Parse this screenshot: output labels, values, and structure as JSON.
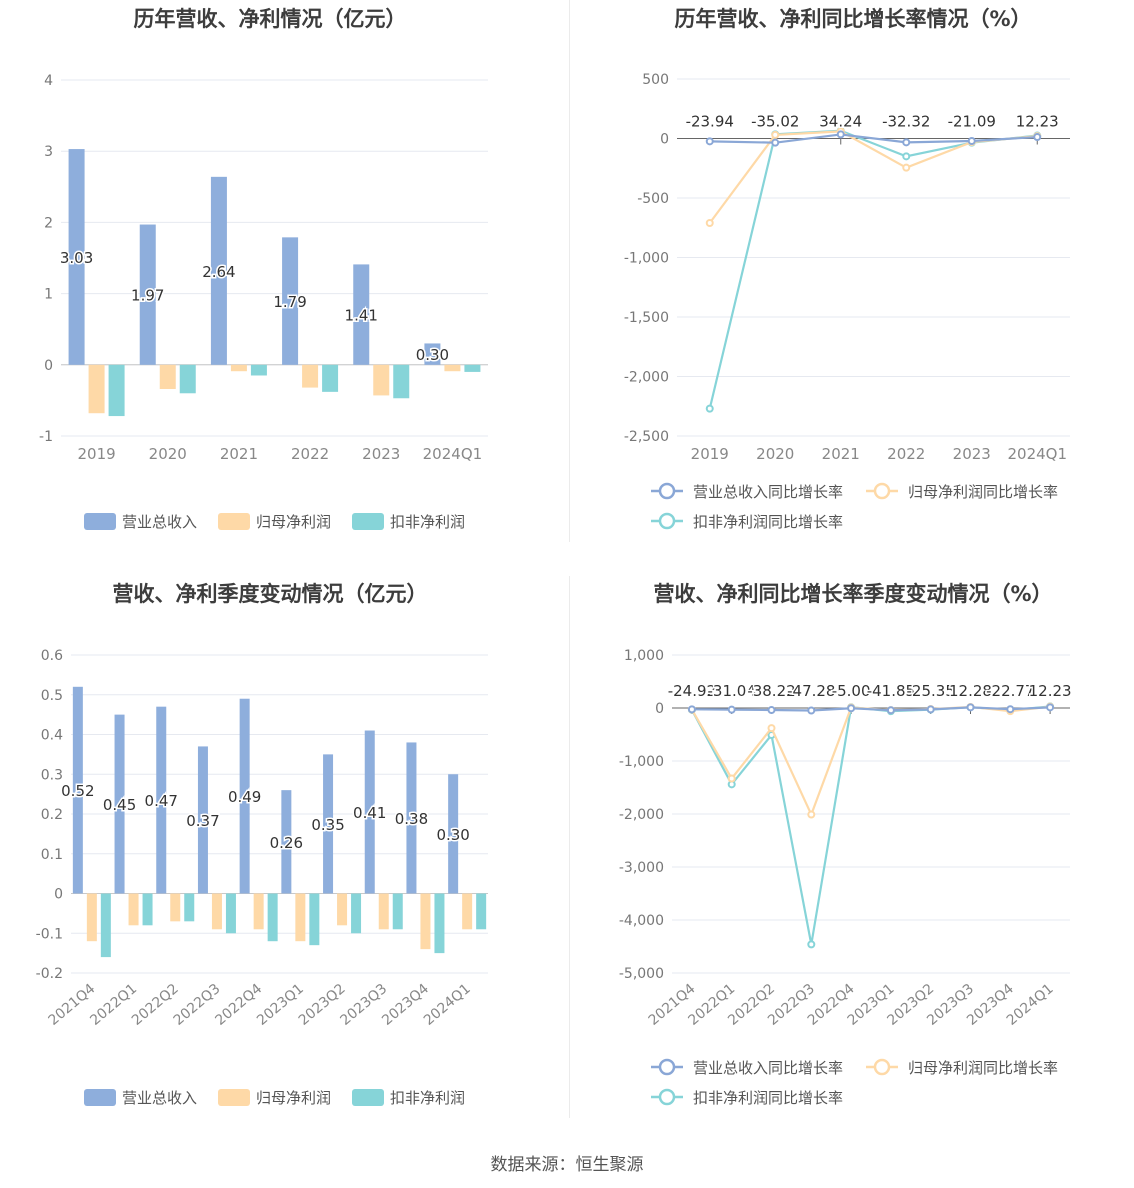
{
  "chart_data": [
    {
      "type": "bar",
      "title": "历年营收、净利情况（亿元）",
      "categories": [
        "2019",
        "2020",
        "2021",
        "2022",
        "2023",
        "2024Q1"
      ],
      "ylim": [
        -1,
        4
      ],
      "yticks": [
        -1,
        0,
        1,
        2,
        3,
        4
      ],
      "grid": true,
      "legend": "bottom",
      "series": [
        {
          "name": "营业总收入",
          "color": "#8eaedc",
          "values": [
            3.03,
            1.97,
            2.64,
            1.79,
            1.41,
            0.3
          ],
          "labels": [
            "3.03",
            "1.97",
            "2.64",
            "1.79",
            "1.41",
            "0.30"
          ]
        },
        {
          "name": "归母净利润",
          "color": "#fed9a7",
          "values": [
            -0.68,
            -0.34,
            -0.09,
            -0.32,
            -0.43,
            -0.09
          ]
        },
        {
          "name": "扣非净利润",
          "color": "#86d4d8",
          "values": [
            -0.72,
            -0.4,
            -0.15,
            -0.38,
            -0.47,
            -0.1
          ]
        }
      ]
    },
    {
      "type": "line",
      "title": "历年营收、净利同比增长率情况（%）",
      "categories": [
        "2019",
        "2020",
        "2021",
        "2022",
        "2023",
        "2024Q1"
      ],
      "ylim": [
        -2500,
        500
      ],
      "yticks": [
        -2500,
        -2000,
        -1500,
        -1000,
        -500,
        0,
        500
      ],
      "ytick_labels": [
        "-2,500",
        "-2,000",
        "-1,500",
        "-1,000",
        "-500",
        "0",
        "500"
      ],
      "grid": true,
      "legend": "bottom",
      "series": [
        {
          "name": "营业总收入同比增长率",
          "color": "#8aa7d6",
          "values": [
            -23.94,
            -35.02,
            34.24,
            -32.32,
            -21.09,
            12.23
          ],
          "labels": [
            "-23.94",
            "-35.02",
            "34.24",
            "-32.32",
            "-21.09",
            "12.23"
          ]
        },
        {
          "name": "归母净利润同比增长率",
          "color": "#fed9a7",
          "values": [
            -710,
            30,
            60,
            -245,
            -30,
            20
          ]
        },
        {
          "name": "扣非净利润同比增长率",
          "color": "#86d4d8",
          "values": [
            -2270,
            35,
            65,
            -150,
            -35,
            25
          ]
        }
      ]
    },
    {
      "type": "bar",
      "title": "营收、净利季度变动情况（亿元）",
      "categories": [
        "2021Q4",
        "2022Q1",
        "2022Q2",
        "2022Q3",
        "2022Q4",
        "2023Q1",
        "2023Q2",
        "2023Q3",
        "2023Q4",
        "2024Q1"
      ],
      "ylim": [
        -0.2,
        0.6
      ],
      "yticks": [
        -0.2,
        -0.1,
        0,
        0.1,
        0.2,
        0.3,
        0.4,
        0.5,
        0.6
      ],
      "grid": true,
      "legend": "bottom",
      "series": [
        {
          "name": "营业总收入",
          "color": "#8eaedc",
          "values": [
            0.52,
            0.45,
            0.47,
            0.37,
            0.49,
            0.26,
            0.35,
            0.41,
            0.38,
            0.3
          ],
          "labels": [
            "0.52",
            "0.45",
            "0.47",
            "0.37",
            "0.49",
            "0.26",
            "0.35",
            "0.41",
            "0.38",
            "0.30"
          ]
        },
        {
          "name": "归母净利润",
          "color": "#fed9a7",
          "values": [
            -0.12,
            -0.08,
            -0.07,
            -0.09,
            -0.09,
            -0.12,
            -0.08,
            -0.09,
            -0.14,
            -0.09
          ]
        },
        {
          "name": "扣非净利润",
          "color": "#86d4d8",
          "values": [
            -0.16,
            -0.08,
            -0.07,
            -0.1,
            -0.12,
            -0.13,
            -0.1,
            -0.09,
            -0.15,
            -0.09
          ]
        }
      ]
    },
    {
      "type": "line",
      "title": "营收、净利同比增长率季度变动情况（%）",
      "categories": [
        "2021Q4",
        "2022Q1",
        "2022Q2",
        "2022Q3",
        "2022Q4",
        "2023Q1",
        "2023Q2",
        "2023Q3",
        "2023Q4",
        "2024Q1"
      ],
      "ylim": [
        -5000,
        1000
      ],
      "yticks": [
        -5000,
        -4000,
        -3000,
        -2000,
        -1000,
        0,
        1000
      ],
      "ytick_labels": [
        "-5,000",
        "-4,000",
        "-3,000",
        "-2,000",
        "-1,000",
        "0",
        "1,000"
      ],
      "grid": true,
      "legend": "bottom",
      "series": [
        {
          "name": "营业总收入同比增长率",
          "color": "#8aa7d6",
          "values": [
            -24.92,
            -31.04,
            -38.22,
            -47.28,
            -5.0,
            -41.85,
            -25.35,
            12.28,
            -22.77,
            12.23
          ],
          "labels": [
            "-24.92",
            "-31.04",
            "-38.22",
            "-47.28",
            "-5.00",
            "-41.85",
            "-25.35",
            "12.28",
            "-22.77",
            "12.23"
          ]
        },
        {
          "name": "归母净利润同比增长率",
          "color": "#fed9a7",
          "values": [
            -30,
            -1330,
            -380,
            -2010,
            10,
            -40,
            -20,
            20,
            -60,
            25
          ]
        },
        {
          "name": "扣非净利润同比增长率",
          "color": "#86d4d8",
          "values": [
            -35,
            -1440,
            -510,
            -4460,
            15,
            -60,
            -30,
            15,
            -40,
            30
          ]
        }
      ]
    }
  ],
  "footer": {
    "source": "数据来源：恒生聚源"
  }
}
